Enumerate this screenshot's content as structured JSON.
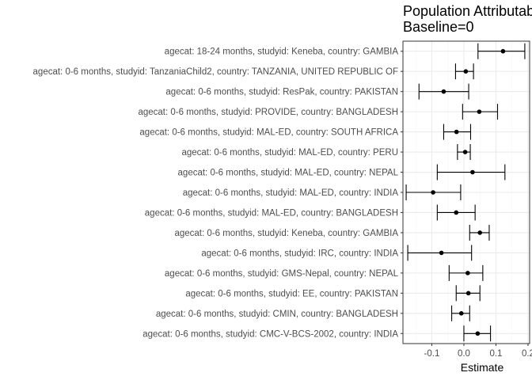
{
  "chart_data": {
    "type": "scatter",
    "title": "Population Attributable",
    "subtitle": "Baseline=0",
    "xlabel": "Estimate",
    "ylabel": "",
    "xlim": [
      -0.19,
      0.205
    ],
    "x_ticks": [
      -0.1,
      0.0,
      0.1,
      0.2
    ],
    "x_tick_labels": [
      "-0.1",
      "0.0",
      "0.1",
      "0.2"
    ],
    "grid": true,
    "theme": "bw",
    "categories": [
      "agecat: 18-24 months, studyid: Keneba, country: GAMBIA",
      "agecat: 0-6 months, studyid: TanzaniaChild2, country: TANZANIA, UNITED REPUBLIC OF",
      "agecat: 0-6 months, studyid: ResPak, country: PAKISTAN",
      "agecat: 0-6 months, studyid: PROVIDE, country: BANGLADESH",
      "agecat: 0-6 months, studyid: MAL-ED, country: SOUTH AFRICA",
      "agecat: 0-6 months, studyid: MAL-ED, country: PERU",
      "agecat: 0-6 months, studyid: MAL-ED, country: NEPAL",
      "agecat: 0-6 months, studyid: MAL-ED, country: INDIA",
      "agecat: 0-6 months, studyid: MAL-ED, country: BANGLADESH",
      "agecat: 0-6 months, studyid: Keneba, country: GAMBIA",
      "agecat: 0-6 months, studyid: IRC, country: INDIA",
      "agecat: 0-6 months, studyid: GMS-Nepal, country: NEPAL",
      "agecat: 0-6 months, studyid: EE, country: PAKISTAN",
      "agecat: 0-6 months, studyid: CMIN, country: BANGLADESH",
      "agecat: 0-6 months, studyid: CMC-V-BCS-2002, country: INDIA"
    ],
    "estimates": [
      0.122,
      0.006,
      -0.063,
      0.048,
      -0.023,
      0.004,
      0.027,
      -0.096,
      -0.024,
      0.05,
      -0.07,
      0.012,
      0.014,
      -0.008,
      0.043
    ],
    "ci_lower": [
      0.044,
      -0.026,
      -0.14,
      -0.004,
      -0.063,
      -0.02,
      -0.083,
      -0.18,
      -0.083,
      0.018,
      -0.175,
      -0.046,
      -0.024,
      -0.038,
      0.0
    ],
    "ci_upper": [
      0.19,
      0.03,
      0.015,
      0.105,
      0.021,
      0.02,
      0.128,
      -0.01,
      0.035,
      0.079,
      0.024,
      0.059,
      0.05,
      0.018,
      0.083
    ],
    "colors": {
      "point": "#000000",
      "errorbar": "#000000",
      "grid_major": "#ebebeb",
      "grid_minor": "#f5f5f5",
      "panel_border": "#333333"
    }
  }
}
